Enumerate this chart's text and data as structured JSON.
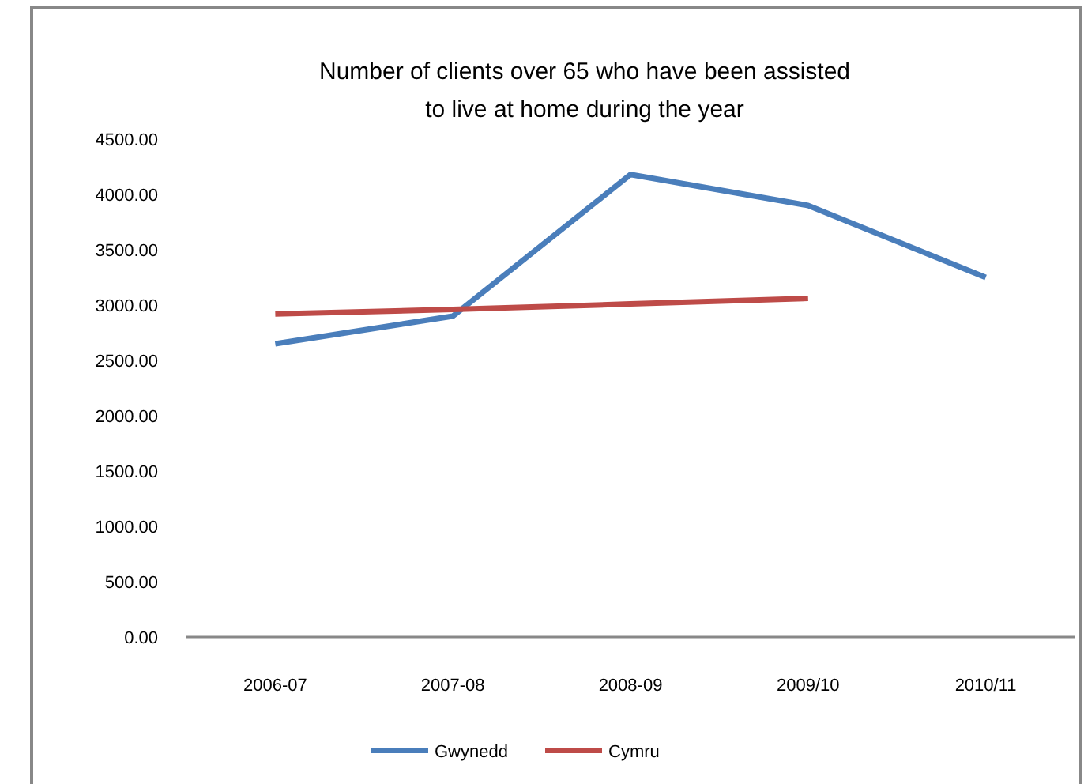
{
  "chart_data": {
    "type": "line",
    "title": "Number of clients over 65 who have been assisted to live at home during the year",
    "categories": [
      "2006-07",
      "2007-08",
      "2008-09",
      "2009/10",
      "2010/11"
    ],
    "series": [
      {
        "name": "Gwynedd",
        "color": "#4a7ebb",
        "values": [
          2650,
          2900,
          4180,
          3900,
          3250
        ]
      },
      {
        "name": "Cymru",
        "color": "#be4b48",
        "values": [
          2920,
          2960,
          3010,
          3060,
          null
        ]
      }
    ],
    "ylim": [
      0,
      4500
    ],
    "yticks": [
      {
        "value": 0,
        "label": "0.00"
      },
      {
        "value": 500,
        "label": "500.00"
      },
      {
        "value": 1000,
        "label": "1000.00"
      },
      {
        "value": 1500,
        "label": "1500.00"
      },
      {
        "value": 2000,
        "label": "2000.00"
      },
      {
        "value": 2500,
        "label": "2500.00"
      },
      {
        "value": 3000,
        "label": "3000.00"
      },
      {
        "value": 3500,
        "label": "3500.00"
      },
      {
        "value": 4000,
        "label": "4000.00"
      },
      {
        "value": 4500,
        "label": "4500.00"
      }
    ],
    "grid": false,
    "legend": "bottom",
    "marker": "none",
    "line_style": "solid"
  }
}
